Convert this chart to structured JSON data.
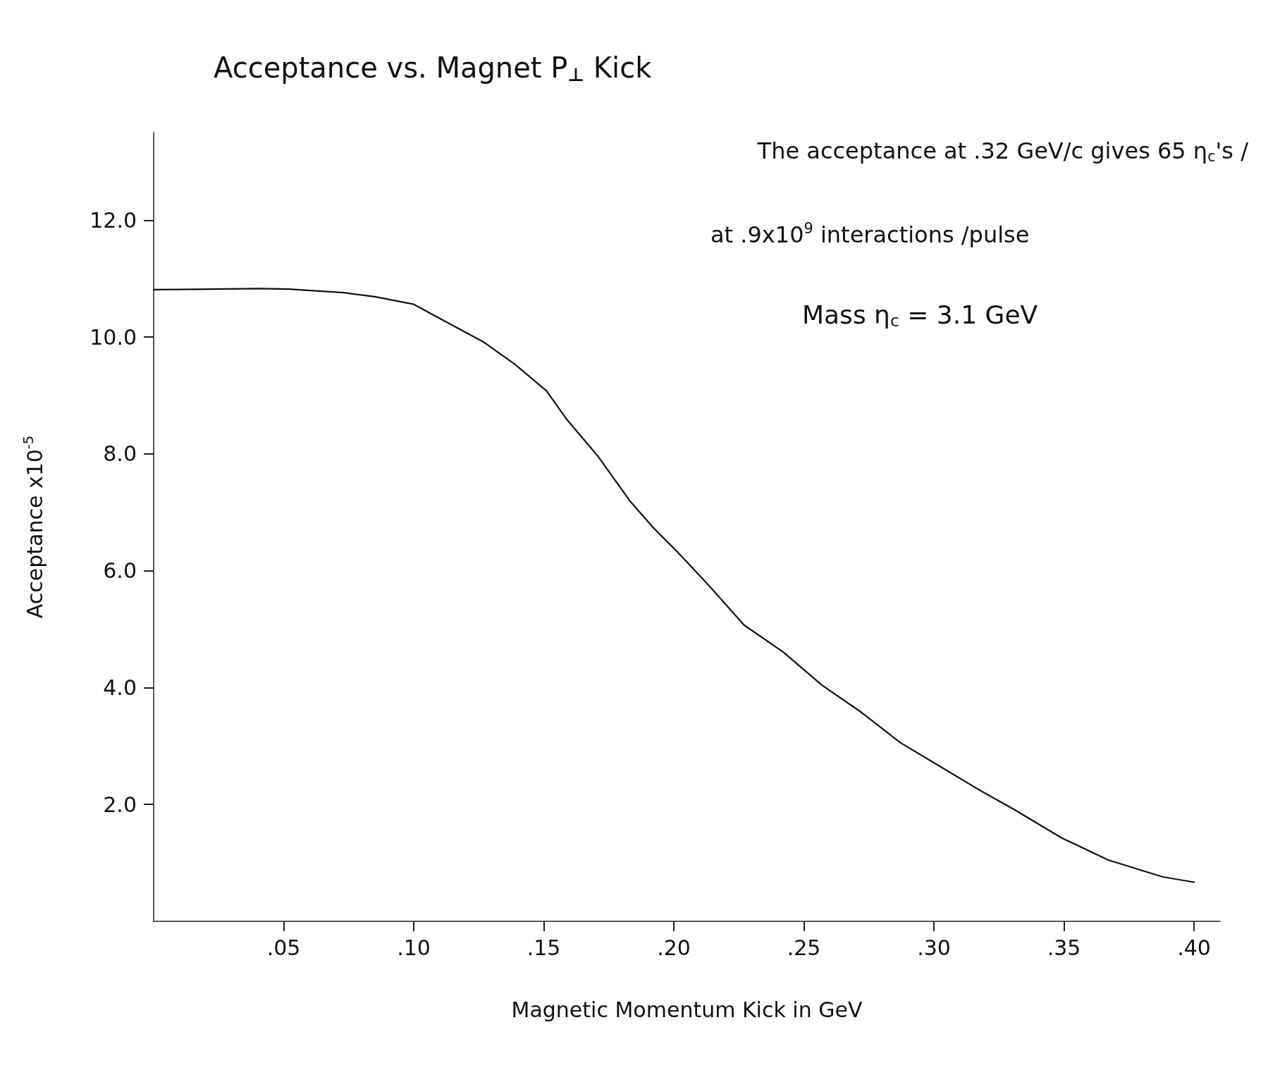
{
  "chart_data": {
    "type": "line",
    "title": "Acceptance vs. Magnet P$_{⊥}$ Kick",
    "xlabel": "Magnetic Momentum Kick in GeV",
    "ylabel": "Acceptance x10$^{-5}$",
    "annotations": [
      "The acceptance at .32 GeV/c gives 65 η$_{c}$'s /",
      "at .9x10$^{9}$ interactions /pulse",
      "Mass η$_{c}$ = 3.1 GeV"
    ],
    "x": [
      0,
      0.041,
      0.052,
      0.073,
      0.085,
      0.1,
      0.112,
      0.127,
      0.139,
      0.151,
      0.159,
      0.171,
      0.183,
      0.192,
      0.201,
      0.213,
      0.227,
      0.242,
      0.257,
      0.272,
      0.287,
      0.302,
      0.317,
      0.331,
      0.349,
      0.367,
      0.388,
      0.4
    ],
    "series": [
      {
        "color": "#111111",
        "values": [
          10.81,
          10.83,
          10.82,
          10.76,
          10.69,
          10.56,
          10.27,
          9.91,
          9.53,
          9.08,
          8.58,
          7.95,
          7.2,
          6.74,
          6.34,
          5.77,
          5.07,
          4.61,
          4.04,
          3.58,
          3.06,
          2.66,
          2.26,
          1.91,
          1.43,
          1.05,
          0.76,
          0.67
        ]
      }
    ],
    "xlim": [
      0,
      0.41
    ],
    "ylim": [
      0,
      13.5
    ],
    "xticks": [
      {
        "value": 0.05,
        "label": ".05"
      },
      {
        "value": 0.1,
        "label": ".10"
      },
      {
        "value": 0.15,
        "label": ".15"
      },
      {
        "value": 0.2,
        "label": ".20"
      },
      {
        "value": 0.25,
        "label": ".25"
      },
      {
        "value": 0.3,
        "label": ".30"
      },
      {
        "value": 0.35,
        "label": ".35"
      },
      {
        "value": 0.4,
        "label": ".40"
      }
    ],
    "yticks": [
      {
        "value": 2,
        "label": "2.0"
      },
      {
        "value": 4,
        "label": "4.0"
      },
      {
        "value": 6,
        "label": "6.0"
      },
      {
        "value": 8,
        "label": "8.0"
      },
      {
        "value": 10,
        "label": "10.0"
      },
      {
        "value": 12,
        "label": "12.0"
      }
    ],
    "grid": false,
    "marker": "none",
    "line_style": "solid"
  }
}
